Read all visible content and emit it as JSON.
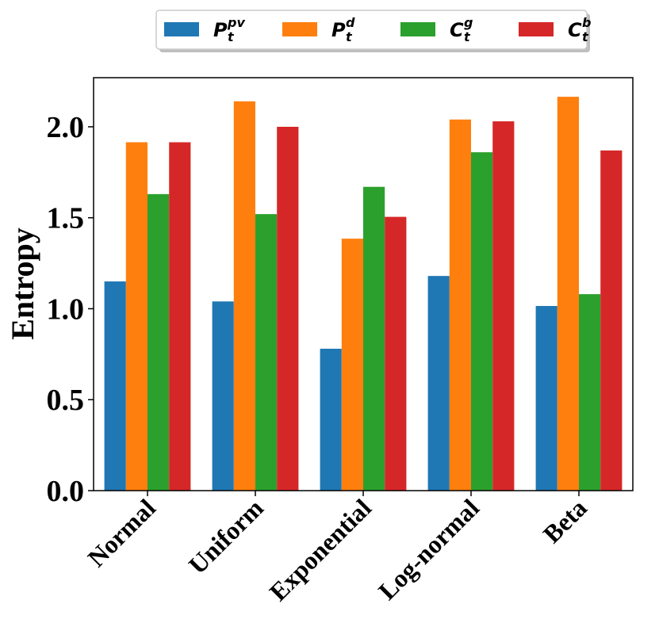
{
  "chart_data": {
    "type": "bar",
    "title": "",
    "xlabel": "",
    "ylabel": "Entropy",
    "ylim": [
      0,
      2.27
    ],
    "yticks": [
      "0.0",
      "0.5",
      "1.0",
      "1.5",
      "2.0"
    ],
    "ytick_values": [
      0,
      0.5,
      1.0,
      1.5,
      2.0
    ],
    "categories": [
      "Normal",
      "Uniform",
      "Exponential",
      "Log-normal",
      "Beta"
    ],
    "legend_position": "top-center",
    "series": [
      {
        "name": "P_t^pv",
        "base": "P",
        "sup": "pv",
        "sub": "t",
        "color": "#1f77b4",
        "values": [
          1.15,
          1.04,
          0.78,
          1.18,
          1.015
        ]
      },
      {
        "name": "P_t^d",
        "base": "P",
        "sup": "d",
        "sub": "t",
        "color": "#ff7f0e",
        "values": [
          1.915,
          2.14,
          1.385,
          2.04,
          2.165
        ]
      },
      {
        "name": "C_t^g",
        "base": "C",
        "sup": "g",
        "sub": "t",
        "color": "#2ca02c",
        "values": [
          1.63,
          1.52,
          1.67,
          1.86,
          1.08
        ]
      },
      {
        "name": "C_t^b",
        "base": "C",
        "sup": "b",
        "sub": "t",
        "color": "#d62728",
        "values": [
          1.915,
          2.0,
          1.505,
          2.03,
          1.87
        ]
      }
    ]
  }
}
